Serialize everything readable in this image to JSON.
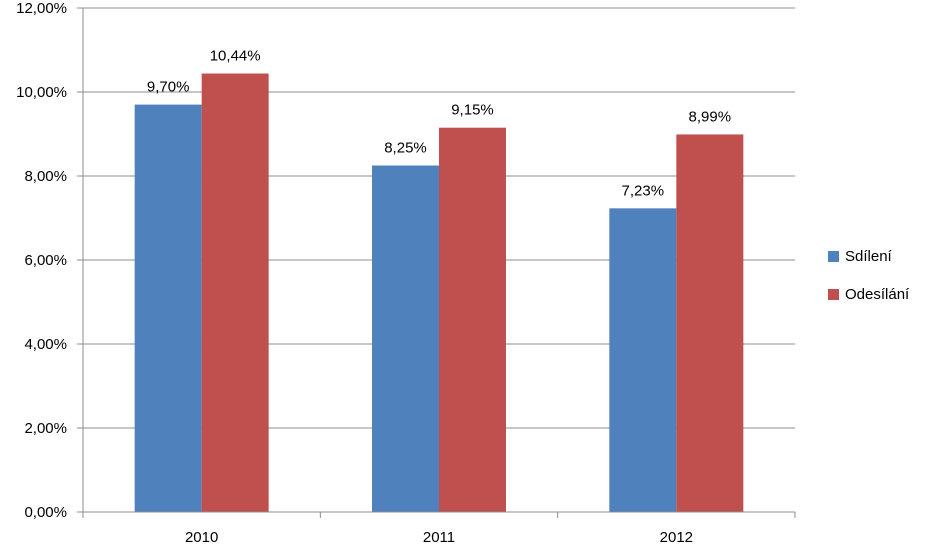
{
  "chart_data": {
    "type": "bar",
    "categories": [
      "2010",
      "2011",
      "2012"
    ],
    "series": [
      {
        "name": "Sdílení",
        "values": [
          9.7,
          8.25,
          7.23
        ],
        "labels": [
          "9,70%",
          "8,25%",
          "7,23%"
        ],
        "color": "#4f81bd"
      },
      {
        "name": "Odesílání",
        "values": [
          10.44,
          9.15,
          8.99
        ],
        "labels": [
          "10,44%",
          "9,15%",
          "8,99%"
        ],
        "color": "#c0504d"
      }
    ],
    "title": "",
    "xlabel": "",
    "ylabel": "",
    "ylim": [
      0,
      12
    ],
    "yticks": [
      0,
      2,
      4,
      6,
      8,
      10,
      12
    ],
    "ytick_labels": [
      "0,00%",
      "2,00%",
      "4,00%",
      "6,00%",
      "8,00%",
      "10,00%",
      "12,00%"
    ],
    "grid": true,
    "legend_position": "right"
  }
}
